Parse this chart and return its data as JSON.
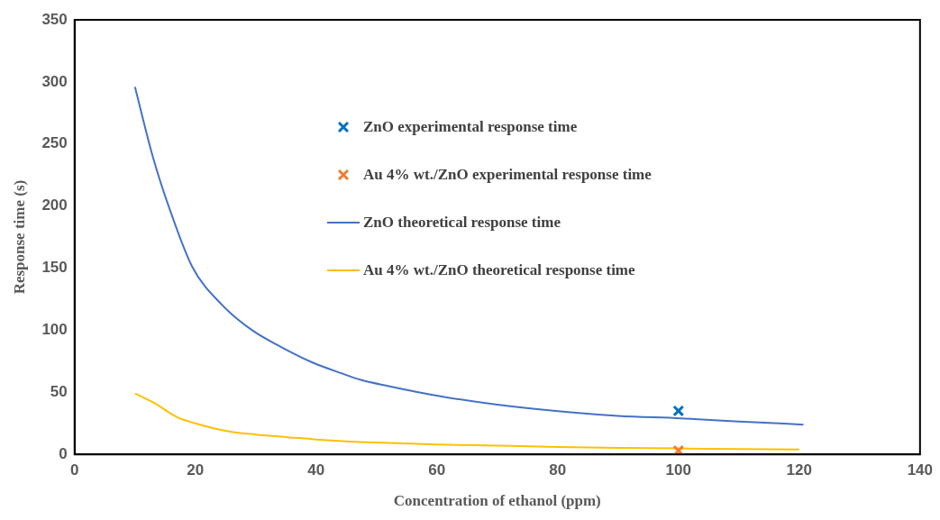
{
  "chart_data": {
    "type": "line",
    "xlabel": "Concentration of ethanol (ppm)",
    "ylabel": "Response time (s)",
    "xlim": [
      0,
      140
    ],
    "xticks": [
      0,
      20,
      40,
      60,
      80,
      100,
      120,
      140
    ],
    "ylim": [
      0,
      350
    ],
    "yticks": [
      0,
      50,
      100,
      150,
      200,
      250,
      300,
      350
    ],
    "grid": false,
    "legend": "top",
    "line_style": "solid",
    "series": [
      {
        "name": "ZnO experimental response time",
        "type": "scatter",
        "marker": "cross",
        "color": "#0070c0",
        "x": [
          100
        ],
        "values": [
          35
        ]
      },
      {
        "name": "Au 4% wt./ZnO experimental response time",
        "type": "scatter",
        "marker": "cross",
        "color": "#ed7d31",
        "x": [
          100
        ],
        "values": [
          3
        ]
      },
      {
        "name": "ZnO theoretical response time",
        "type": "line",
        "marker": "none",
        "color": "#4472c4",
        "x": [
          10,
          13,
          16,
          19.5,
          24.5,
          29.4,
          34,
          39.4,
          44.4,
          47.4,
          52,
          60.4,
          70,
          81.7,
          90,
          100.4,
          110,
          120.7
        ],
        "values": [
          296,
          239,
          194,
          151,
          120,
          100,
          87,
          74,
          65,
          60,
          55,
          47,
          40,
          34,
          31,
          29,
          26.5,
          24
        ]
      },
      {
        "name": "Au 4% wt./ZnO theoretical response time",
        "type": "line",
        "marker": "none",
        "color": "#ffc000",
        "x": [
          10,
          13,
          17,
          20,
          25,
          30,
          35,
          40,
          45,
          50,
          60,
          70,
          80,
          90,
          100,
          110,
          120
        ],
        "values": [
          49,
          42,
          30,
          25,
          19,
          16,
          14,
          12,
          10.5,
          9.5,
          8,
          7,
          6,
          5.3,
          4.8,
          4.3,
          4
        ]
      }
    ]
  }
}
